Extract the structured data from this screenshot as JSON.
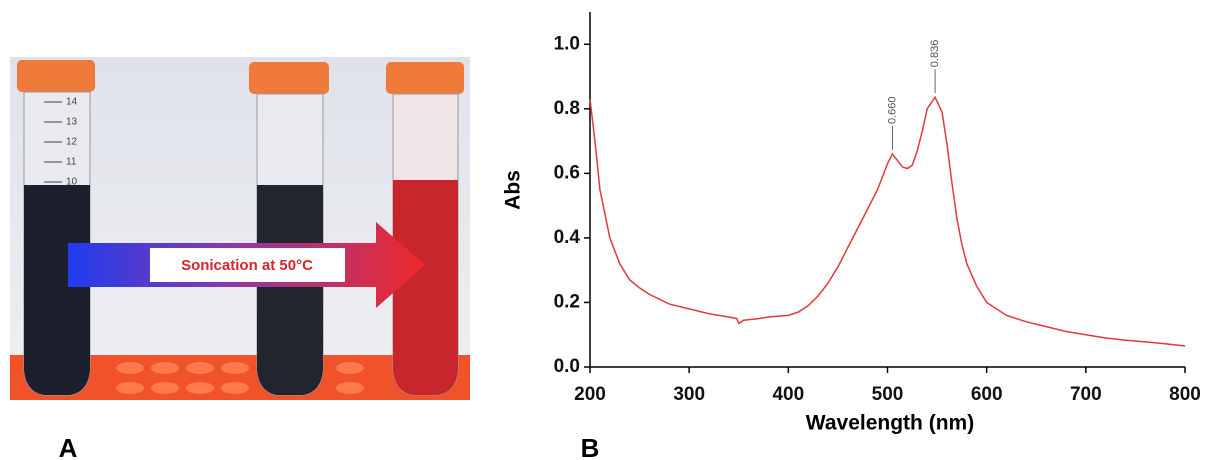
{
  "photo": {
    "label": "A",
    "arrow_text": "Sonication at 50°C",
    "tube_scale": [
      14,
      13,
      12,
      11,
      10
    ]
  },
  "chart_data": {
    "type": "line",
    "label": "B",
    "x_label": "Wavelength (nm)",
    "y_label": "Abs",
    "color": "#e23a3a",
    "x": [
      200,
      205,
      210,
      220,
      230,
      240,
      250,
      260,
      280,
      300,
      320,
      340,
      348,
      350,
      355,
      370,
      380,
      400,
      410,
      420,
      430,
      440,
      450,
      460,
      470,
      480,
      490,
      500,
      505,
      510,
      515,
      520,
      525,
      530,
      535,
      540,
      548,
      555,
      560,
      565,
      570,
      575,
      580,
      590,
      600,
      620,
      640,
      660,
      680,
      700,
      720,
      740,
      760,
      780,
      800
    ],
    "values": [
      0.83,
      0.7,
      0.55,
      0.4,
      0.32,
      0.27,
      0.245,
      0.225,
      0.195,
      0.18,
      0.165,
      0.155,
      0.15,
      0.135,
      0.145,
      0.15,
      0.155,
      0.16,
      0.17,
      0.19,
      0.22,
      0.26,
      0.31,
      0.37,
      0.43,
      0.49,
      0.55,
      0.63,
      0.66,
      0.64,
      0.62,
      0.615,
      0.625,
      0.67,
      0.73,
      0.8,
      0.836,
      0.79,
      0.69,
      0.57,
      0.46,
      0.38,
      0.32,
      0.25,
      0.2,
      0.16,
      0.14,
      0.125,
      0.11,
      0.1,
      0.09,
      0.083,
      0.078,
      0.072,
      0.065
    ],
    "xlim": [
      200,
      800
    ],
    "xticks": [
      200,
      300,
      400,
      500,
      600,
      700,
      800
    ],
    "ylim": [
      0,
      1.1
    ],
    "yticks": [
      {
        "value": 0,
        "label": "0.0"
      },
      0.2,
      0.4,
      0.6,
      0.8,
      {
        "value": 1,
        "label": "1.0"
      }
    ],
    "annotations": [
      {
        "x": 505,
        "y": 0.66,
        "label": "0.660"
      },
      {
        "x": 548,
        "y": 0.836,
        "label": "0.836"
      }
    ]
  }
}
